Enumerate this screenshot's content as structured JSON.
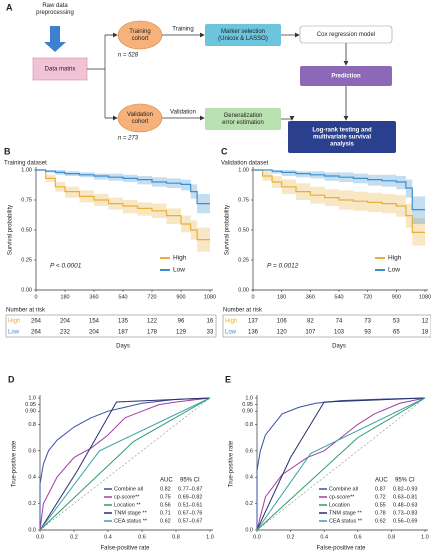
{
  "diagram": {
    "panel": "A",
    "nodes": [
      {
        "lines": [
          "Raw data",
          "preprocessing"
        ]
      },
      {
        "lines": [
          "Data matrix"
        ]
      },
      {
        "lines": [
          "Training",
          "cohort"
        ],
        "note": "n = 528"
      },
      {
        "lines": [
          "Validation",
          "cohort"
        ],
        "note": "n = 273"
      },
      {
        "lines": [
          "Marker selection",
          "(Unicox & LASSO)"
        ]
      },
      {
        "lines": [
          "Cox regression model"
        ]
      },
      {
        "lines": [
          "Prediction"
        ]
      },
      {
        "lines": [
          "Generalization",
          "error estimation"
        ]
      },
      {
        "lines": [
          "Log-rank testing and",
          "multivariate survival",
          "analysis"
        ]
      }
    ],
    "edge_labels": [
      "Training",
      "Validation"
    ]
  },
  "chart_data": [
    {
      "type": "step",
      "panel": "B",
      "subtitle": "Training dataset",
      "ylabel": "Survival probability",
      "annotation": "P < 0.0001",
      "x": [
        0,
        60,
        120,
        180,
        270,
        360,
        450,
        540,
        630,
        720,
        810,
        900,
        960,
        1000,
        1080
      ],
      "series": [
        {
          "name": "High",
          "color": "#e8b03a",
          "values": [
            1,
            0.93,
            0.86,
            0.82,
            0.78,
            0.75,
            0.72,
            0.7,
            0.68,
            0.66,
            0.62,
            0.55,
            0.5,
            0.42,
            0.42
          ],
          "ci_upper": [
            1,
            0.96,
            0.9,
            0.86,
            0.83,
            0.8,
            0.77,
            0.75,
            0.73,
            0.72,
            0.68,
            0.62,
            0.58,
            0.52,
            0.52
          ],
          "ci_lower": [
            1,
            0.9,
            0.82,
            0.77,
            0.73,
            0.7,
            0.67,
            0.64,
            0.62,
            0.6,
            0.55,
            0.48,
            0.42,
            0.32,
            0.32
          ]
        },
        {
          "name": "Low",
          "color": "#3a8fd0",
          "values": [
            1,
            0.99,
            0.98,
            0.97,
            0.96,
            0.95,
            0.94,
            0.93,
            0.92,
            0.9,
            0.89,
            0.88,
            0.82,
            0.72,
            0.72
          ],
          "ci_upper": [
            1,
            1,
            1,
            0.99,
            0.98,
            0.97,
            0.97,
            0.96,
            0.95,
            0.94,
            0.93,
            0.92,
            0.88,
            0.8,
            0.8
          ],
          "ci_lower": [
            1,
            0.98,
            0.96,
            0.95,
            0.94,
            0.92,
            0.91,
            0.9,
            0.88,
            0.86,
            0.85,
            0.83,
            0.76,
            0.64,
            0.64
          ]
        }
      ],
      "xlim": [
        0,
        1080
      ],
      "xticks": [
        0,
        180,
        360,
        540,
        720,
        900,
        1080
      ],
      "ylim": [
        0,
        1
      ],
      "yticks": [
        {
          "value": 0,
          "label": "0.00"
        },
        0.25,
        {
          "value": 0.5,
          "label": "0.50"
        },
        0.75,
        {
          "value": 1,
          "label": "1.00"
        }
      ],
      "risk_table": {
        "title": "Number at risk",
        "xlabel": "Days",
        "rows": [
          {
            "name": "High",
            "values": [
              264,
              204,
              154,
              135,
              122,
              96,
              16
            ]
          },
          {
            "name": "Low",
            "values": [
              264,
              232,
              204,
              187,
              178,
              129,
              33
            ]
          }
        ]
      }
    },
    {
      "type": "step",
      "panel": "C",
      "subtitle": "Validation dataset",
      "ylabel": "Survival probability",
      "annotation": "P = 0.0012",
      "x": [
        0,
        60,
        120,
        180,
        270,
        360,
        450,
        540,
        630,
        720,
        810,
        900,
        960,
        1000,
        1080
      ],
      "series": [
        {
          "name": "High",
          "color": "#e8b03a",
          "values": [
            1,
            0.95,
            0.9,
            0.86,
            0.82,
            0.79,
            0.77,
            0.75,
            0.74,
            0.73,
            0.72,
            0.7,
            0.62,
            0.48,
            0.48
          ],
          "ci_upper": [
            1,
            0.99,
            0.95,
            0.92,
            0.89,
            0.86,
            0.84,
            0.83,
            0.82,
            0.81,
            0.8,
            0.79,
            0.72,
            0.6,
            0.6
          ],
          "ci_lower": [
            1,
            0.91,
            0.85,
            0.8,
            0.75,
            0.72,
            0.7,
            0.67,
            0.66,
            0.65,
            0.64,
            0.61,
            0.52,
            0.37,
            0.37
          ]
        },
        {
          "name": "Low",
          "color": "#3a8fd0",
          "values": [
            1,
            1,
            0.99,
            0.98,
            0.97,
            0.96,
            0.95,
            0.94,
            0.93,
            0.92,
            0.91,
            0.9,
            0.85,
            0.67,
            0.67
          ],
          "ci_upper": [
            1,
            1,
            1,
            1,
            0.99,
            0.99,
            0.98,
            0.98,
            0.97,
            0.96,
            0.96,
            0.95,
            0.92,
            0.78,
            0.78
          ],
          "ci_lower": [
            1,
            1,
            0.97,
            0.95,
            0.94,
            0.93,
            0.91,
            0.9,
            0.89,
            0.87,
            0.86,
            0.84,
            0.77,
            0.55,
            0.55
          ]
        }
      ],
      "xlim": [
        0,
        1080
      ],
      "xticks": [
        0,
        180,
        360,
        540,
        720,
        900,
        1080
      ],
      "ylim": [
        0,
        1
      ],
      "yticks": [
        {
          "value": 0,
          "label": "0.00"
        },
        0.25,
        {
          "value": 0.5,
          "label": "0.50"
        },
        0.75,
        {
          "value": 1,
          "label": "1.00"
        }
      ],
      "risk_table": {
        "title": "Number at risk",
        "xlabel": "Days",
        "rows": [
          {
            "name": "High",
            "values": [
              137,
              106,
              82,
              74,
              73,
              53,
              12
            ]
          },
          {
            "name": "Low",
            "values": [
              136,
              120,
              107,
              103,
              93,
              65,
              18
            ]
          }
        ]
      }
    },
    {
      "type": "roc",
      "panel": "D",
      "xlabel": "False-positive rate",
      "ylabel": "True-positive rate",
      "legend_headers": [
        "AUC",
        "95% CI"
      ],
      "series": [
        {
          "name": "Combine all",
          "color": "#3b4fa3",
          "auc": 0.82,
          "ci": "0.77–0.87",
          "x": [
            0,
            0,
            0.02,
            0.05,
            0.1,
            0.2,
            0.3,
            0.4,
            0.5,
            0.6,
            0.8,
            1
          ],
          "values": [
            0,
            0.35,
            0.5,
            0.6,
            0.68,
            0.78,
            0.85,
            0.9,
            0.93,
            0.96,
            0.99,
            1
          ]
        },
        {
          "name": "cp-score**",
          "color": "#a03ca8",
          "auc": 0.75,
          "ci": "0.69–0.82",
          "x": [
            0,
            0.02,
            0.1,
            0.2,
            0.3,
            0.4,
            0.5,
            0.6,
            0.7,
            0.8,
            1
          ],
          "values": [
            0,
            0.2,
            0.4,
            0.55,
            0.62,
            0.72,
            0.85,
            0.9,
            0.95,
            0.97,
            1
          ]
        },
        {
          "name": "Location **",
          "color": "#2f9a6e",
          "auc": 0.56,
          "ci": "0.51–0.61",
          "x": [
            0,
            0.55,
            1
          ],
          "values": [
            0,
            0.67,
            1
          ]
        },
        {
          "name": "TNM stage **",
          "color": "#2a2f6e",
          "auc": 0.71,
          "ci": "0.67–0.76",
          "x": [
            0,
            0.22,
            0.45,
            1
          ],
          "values": [
            0,
            0.45,
            0.97,
            1
          ]
        },
        {
          "name": "CEA status **",
          "color": "#3aa3a8",
          "auc": 0.62,
          "ci": "0.57–0.67",
          "x": [
            0,
            0.35,
            1
          ],
          "values": [
            0,
            0.6,
            1
          ]
        }
      ],
      "xlim": [
        0,
        1
      ],
      "xticks": [
        {
          "value": 0,
          "label": "0.0"
        },
        0.2,
        0.4,
        0.6,
        0.8,
        {
          "value": 1,
          "label": "1.0"
        }
      ],
      "ylim": [
        0,
        1
      ],
      "yticks": [
        {
          "value": 0,
          "label": "0.0"
        },
        0.2,
        0.4,
        0.6,
        0.8,
        {
          "value": 0.9,
          "label": "0.90"
        },
        0.95,
        {
          "value": 1,
          "label": "1.0"
        }
      ]
    },
    {
      "type": "roc",
      "panel": "E",
      "xlabel": "False-positive rate",
      "ylabel": "True-positive rate",
      "legend_headers": [
        "AUC",
        "95% CI"
      ],
      "series": [
        {
          "name": "Combine all",
          "color": "#3b4fa3",
          "auc": 0.87,
          "ci": "0.82–0.93",
          "x": [
            0,
            0,
            0.02,
            0.05,
            0.1,
            0.15,
            0.25,
            0.35,
            0.5,
            0.7,
            1
          ],
          "values": [
            0,
            0.45,
            0.6,
            0.72,
            0.8,
            0.88,
            0.93,
            0.96,
            0.98,
            0.99,
            1
          ]
        },
        {
          "name": "cp-score**",
          "color": "#a03ca8",
          "auc": 0.72,
          "ci": "0.63–0.81",
          "x": [
            0,
            0.05,
            0.15,
            0.3,
            0.4,
            0.5,
            0.6,
            0.7,
            0.85,
            1
          ],
          "values": [
            0,
            0.25,
            0.42,
            0.55,
            0.6,
            0.7,
            0.8,
            0.88,
            0.96,
            1
          ]
        },
        {
          "name": "Location",
          "color": "#2f9a6e",
          "auc": 0.55,
          "ci": "0.48–0.63",
          "x": [
            0,
            0.6,
            1
          ],
          "values": [
            0,
            0.7,
            1
          ]
        },
        {
          "name": "TNM stage **",
          "color": "#2a2f6e",
          "auc": 0.78,
          "ci": "0.73–0.83",
          "x": [
            0,
            0.2,
            0.4,
            1
          ],
          "values": [
            0,
            0.55,
            0.97,
            1
          ]
        },
        {
          "name": "CEA status **",
          "color": "#3aa3a8",
          "auc": 0.62,
          "ci": "0.56–0.69",
          "x": [
            0,
            0.32,
            1
          ],
          "values": [
            0,
            0.58,
            1
          ]
        }
      ],
      "xlim": [
        0,
        1
      ],
      "xticks": [
        {
          "value": 0,
          "label": "0.0"
        },
        0.2,
        0.4,
        0.6,
        0.8,
        {
          "value": 1,
          "label": "1.0"
        }
      ],
      "ylim": [
        0,
        1
      ],
      "yticks": [
        {
          "value": 0,
          "label": "0.0"
        },
        0.2,
        0.4,
        0.6,
        0.8,
        {
          "value": 0.9,
          "label": "0.90"
        },
        0.95,
        {
          "value": 1,
          "label": "1.0"
        }
      ]
    }
  ]
}
